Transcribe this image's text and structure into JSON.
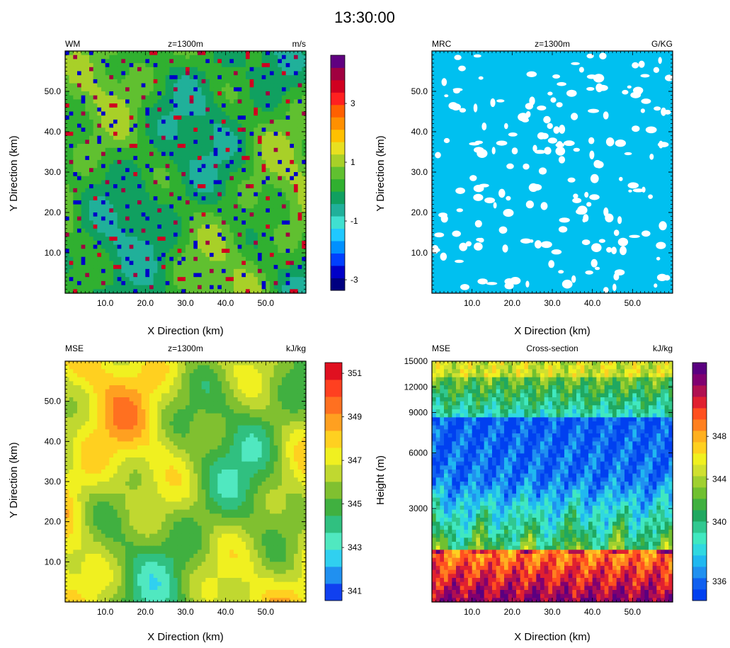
{
  "figure_title": "13:30:00",
  "panels": [
    {
      "id": "wm",
      "variable": "WM",
      "level_label": "z=1300m",
      "units": "m/s",
      "xlabel": "X Direction (km)",
      "ylabel": "Y Direction (km)",
      "colorbar_ticks": [
        "3",
        "1",
        "-1",
        "-3"
      ]
    },
    {
      "id": "mrc",
      "variable": "MRC",
      "level_label": "z=1300m",
      "units": "G/KG",
      "xlabel": "X Direction (km)",
      "ylabel": "Y Direction (km)"
    },
    {
      "id": "mse",
      "variable": "MSE",
      "level_label": "z=1300m",
      "units": "kJ/kg",
      "xlabel": "X Direction (km)",
      "ylabel": "Y Direction (km)",
      "colorbar_ticks": [
        "351",
        "349",
        "347",
        "345",
        "343",
        "341"
      ]
    },
    {
      "id": "xsec",
      "variable": "MSE",
      "level_label": "Cross-section",
      "units": "kJ/kg",
      "xlabel": "X Direction (km)",
      "ylabel": "Height (m)",
      "colorbar_ticks": [
        "348",
        "344",
        "340",
        "336"
      ]
    }
  ],
  "chart_data": [
    {
      "type": "heatmap",
      "panel": "wm",
      "x_ticks": [
        "10.0",
        "20.0",
        "30.0",
        "40.0",
        "50.0"
      ],
      "y_ticks": [
        "50.0",
        "40.0",
        "30.0",
        "20.0",
        "10.0"
      ],
      "xlim": [
        0,
        60
      ],
      "ylim": [
        0,
        60
      ],
      "colorbar_range": [
        -4,
        4
      ],
      "colors": [
        "#000080",
        "#0000c8",
        "#0040ff",
        "#0090ff",
        "#20c8ff",
        "#40e0d0",
        "#20b09a",
        "#10a060",
        "#30b030",
        "#60c030",
        "#a8d028",
        "#e8e020",
        "#ffc000",
        "#ff9000",
        "#ff6000",
        "#ff2020",
        "#d00020",
        "#a00040",
        "#600080"
      ]
    },
    {
      "type": "heatmap",
      "panel": "mrc",
      "x_ticks": [
        "10.0",
        "20.0",
        "30.0",
        "40.0",
        "50.0"
      ],
      "y_ticks": [
        "50.0",
        "40.0",
        "30.0",
        "20.0",
        "10.0"
      ],
      "xlim": [
        0,
        60
      ],
      "ylim": [
        0,
        60
      ],
      "colors": [
        "#00c0f0",
        "#ffffff"
      ]
    },
    {
      "type": "heatmap",
      "panel": "mse",
      "x_ticks": [
        "10.0",
        "20.0",
        "30.0",
        "40.0",
        "50.0"
      ],
      "y_ticks": [
        "50.0",
        "40.0",
        "30.0",
        "20.0",
        "10.0"
      ],
      "xlim": [
        0,
        60
      ],
      "ylim": [
        0,
        60
      ],
      "colorbar_range": [
        340.5,
        351.5
      ],
      "colors": [
        "#1040f0",
        "#2090f0",
        "#30d0f0",
        "#50e8c0",
        "#30c080",
        "#40b040",
        "#80c030",
        "#c0d830",
        "#f0f020",
        "#ffd020",
        "#ffa020",
        "#ff7020",
        "#ff4020",
        "#e01020"
      ]
    },
    {
      "type": "heatmap",
      "panel": "xsec",
      "x_ticks": [
        "10.0",
        "20.0",
        "30.0",
        "40.0",
        "50.0"
      ],
      "y_ticks": [
        "15000",
        "12000",
        "9000",
        "6000",
        "3000"
      ],
      "xlim": [
        0,
        60
      ],
      "ylim": [
        0,
        15000
      ],
      "colorbar_range": [
        335,
        351
      ],
      "colors": [
        "#0040f0",
        "#1060f0",
        "#2090f0",
        "#20b8f0",
        "#30d8e0",
        "#40e8c0",
        "#30c890",
        "#20a860",
        "#40b040",
        "#70c030",
        "#a0d030",
        "#d0e030",
        "#f0f020",
        "#ffd020",
        "#ffb020",
        "#ff8020",
        "#ff5020",
        "#e02030",
        "#b01050",
        "#800070",
        "#5a0080"
      ]
    }
  ]
}
